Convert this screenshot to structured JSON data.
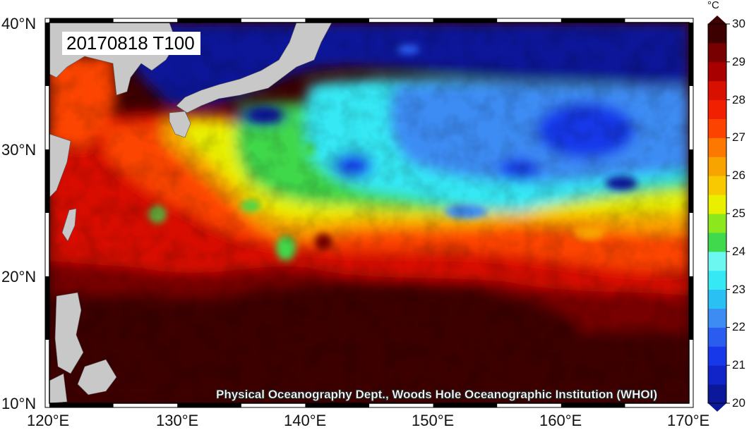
{
  "title": "20170818 T100",
  "credit": "Physical Oceanography Dept., Woods Hole Oceanographic Institution (WHOI)",
  "units": "°C",
  "colorbar": {
    "min": 20,
    "max": 30,
    "tick_labels": [
      "20",
      "21",
      "22",
      "23",
      "24",
      "25",
      "26",
      "27",
      "28",
      "29",
      "30"
    ],
    "colors": [
      "#0b1899",
      "#1024c8",
      "#1738e8",
      "#2a5cf0",
      "#3c8cf4",
      "#2ac0f4",
      "#36e8f4",
      "#6cf8f0",
      "#40d84c",
      "#8ce81c",
      "#e8f000",
      "#f8c800",
      "#f8a400",
      "#fc7800",
      "#fc4400",
      "#f02000",
      "#d81000",
      "#a80000",
      "#780000",
      "#3c0000"
    ]
  },
  "axes": {
    "lon_labels": [
      "120°E",
      "130°E",
      "140°E",
      "150°E",
      "160°E",
      "170°E"
    ],
    "lat_labels": [
      "40°N",
      "30°N",
      "20°N",
      "10°N"
    ],
    "lon_range": [
      120,
      170
    ],
    "lat_range": [
      10,
      40
    ]
  },
  "colors": {
    "land": "#c8c8c8",
    "frame": "#000000"
  }
}
